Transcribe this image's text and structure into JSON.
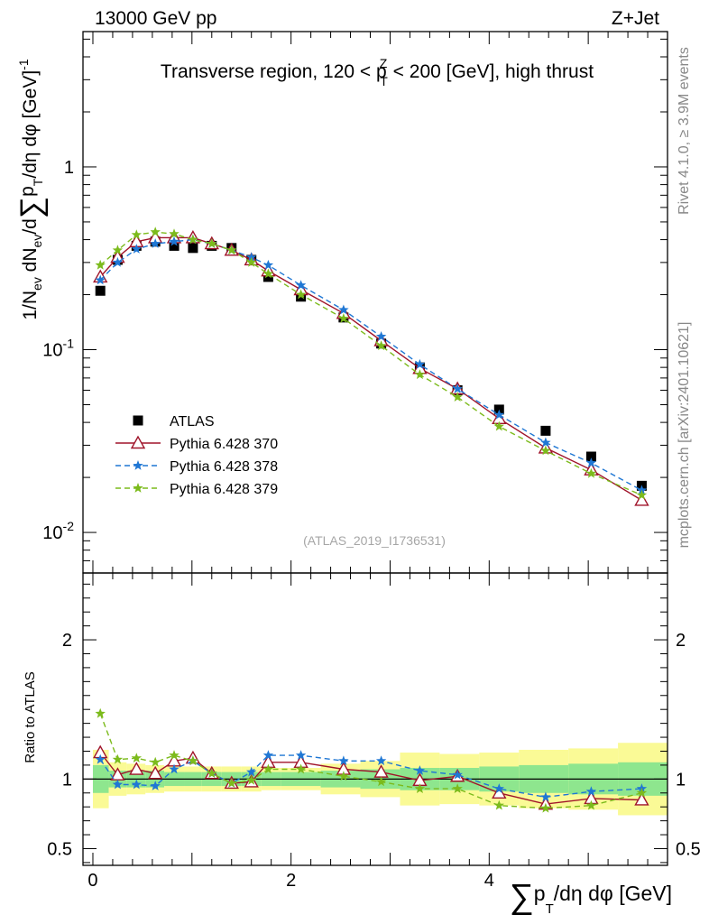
{
  "header": {
    "energy_label": "13000 GeV pp",
    "process_label": "Z+Jet"
  },
  "side_labels": {
    "rivet": "Rivet 4.1.0, ≥ 3.9M events",
    "mcplots": "mcplots.cern.ch [arXiv:2401.10621]"
  },
  "analysis_tag": "(ATLAS_2019_I1736531)",
  "chart_data": [
    {
      "panel": "main",
      "type": "scatter",
      "title": "Transverse region, 120 < p_T^Z < 200 [GeV], high thrust",
      "title_parts": {
        "pre": "Transverse region, 120 < p",
        "sub": "T",
        "sup": "Z",
        "post": " < 200 [GeV], high thrust"
      },
      "ylabel": "1/N_ev dN_ev/d∑p_T/dη dφ [GeV]^-1",
      "ylabel_parts": {
        "a": "1/N",
        "a_sub": "ev",
        "b": " dN",
        "b_sub": "ev",
        "c": "/d",
        "sum": "∑",
        "d": "p",
        "d_sub": "T",
        "e": "/dη dφ  [GeV]",
        "e_sup": "-1"
      },
      "yscale": "log",
      "ylim": [
        0.006,
        5.5
      ],
      "xlim": [
        -0.1,
        5.8
      ],
      "y_tick_labels": [
        {
          "v": 0.01,
          "base": "10",
          "exp": "-2"
        },
        {
          "v": 0.1,
          "base": "10",
          "exp": "-1"
        },
        {
          "v": 1,
          "base": "1",
          "exp": ""
        }
      ],
      "x": [
        0.075,
        0.25,
        0.44,
        0.63,
        0.82,
        1.01,
        1.2,
        1.4,
        1.6,
        1.77,
        2.1,
        2.53,
        2.91,
        3.3,
        3.68,
        4.1,
        4.57,
        5.03,
        5.54
      ],
      "series": [
        {
          "name": "ATLAS",
          "style": "square",
          "color": "#000000",
          "values": [
            0.21,
            0.31,
            0.37,
            0.39,
            0.37,
            0.36,
            0.37,
            0.36,
            0.31,
            0.25,
            0.195,
            0.15,
            0.108,
            0.08,
            0.06,
            0.047,
            0.036,
            0.026,
            0.018
          ]
        },
        {
          "name": "Pythia 6.428 370",
          "style": "triangle-solid",
          "color": "#a0142a",
          "values": [
            0.25,
            0.32,
            0.39,
            0.41,
            0.41,
            0.41,
            0.38,
            0.35,
            0.31,
            0.27,
            0.213,
            0.158,
            0.112,
            0.079,
            0.061,
            0.042,
            0.029,
            0.022,
            0.015
          ]
        },
        {
          "name": "Pythia 6.428 378",
          "style": "star-dashed",
          "color": "#1f77d4",
          "values": [
            0.24,
            0.3,
            0.355,
            0.38,
            0.39,
            0.4,
            0.38,
            0.35,
            0.32,
            0.29,
            0.225,
            0.165,
            0.118,
            0.083,
            0.061,
            0.044,
            0.031,
            0.024,
            0.017
          ]
        },
        {
          "name": "Pythia 6.428 379",
          "style": "star-dashed",
          "color": "#7cbb1c",
          "values": [
            0.29,
            0.35,
            0.425,
            0.44,
            0.43,
            0.4,
            0.38,
            0.35,
            0.3,
            0.26,
            0.2,
            0.148,
            0.105,
            0.073,
            0.055,
            0.038,
            0.028,
            0.021,
            0.016
          ]
        }
      ]
    },
    {
      "panel": "ratio",
      "type": "line",
      "ylabel": "Ratio to ATLAS",
      "xlabel": "∑p_T/dη dφ [GeV]",
      "xlabel_parts": {
        "sum": "∑",
        "a": "p",
        "a_sub": "T",
        "b": "/dη dφ [GeV]"
      },
      "ylim": [
        0.38,
        2.48
      ],
      "xlim": [
        -0.1,
        5.8
      ],
      "y_ticks": [
        0.5,
        1,
        2
      ],
      "x_ticks": [
        0,
        2,
        4
      ],
      "reference": 1,
      "bins": [
        [
          0,
          0.16
        ],
        [
          0.16,
          0.34
        ],
        [
          0.34,
          0.53
        ],
        [
          0.53,
          0.72
        ],
        [
          0.72,
          0.92
        ],
        [
          0.92,
          1.1
        ],
        [
          1.1,
          1.3
        ],
        [
          1.3,
          1.5
        ],
        [
          1.5,
          1.7
        ],
        [
          1.7,
          1.9
        ],
        [
          1.9,
          2.3
        ],
        [
          2.3,
          2.7
        ],
        [
          2.7,
          3.1
        ],
        [
          3.1,
          3.5
        ],
        [
          3.5,
          3.9
        ],
        [
          3.9,
          4.3
        ],
        [
          4.3,
          4.8
        ],
        [
          4.8,
          5.3
        ],
        [
          5.3,
          5.8
        ]
      ],
      "band_inner": [
        [
          0.9,
          1.1
        ],
        [
          0.94,
          1.06
        ],
        [
          0.94,
          1.06
        ],
        [
          0.94,
          1.06
        ],
        [
          0.95,
          1.05
        ],
        [
          0.95,
          1.05
        ],
        [
          0.95,
          1.05
        ],
        [
          0.95,
          1.05
        ],
        [
          0.95,
          1.05
        ],
        [
          0.95,
          1.05
        ],
        [
          0.95,
          1.05
        ],
        [
          0.94,
          1.06
        ],
        [
          0.93,
          1.07
        ],
        [
          0.92,
          1.08
        ],
        [
          0.92,
          1.08
        ],
        [
          0.91,
          1.09
        ],
        [
          0.9,
          1.1
        ],
        [
          0.89,
          1.11
        ],
        [
          0.88,
          1.12
        ]
      ],
      "band_outer": [
        [
          0.79,
          1.21
        ],
        [
          0.88,
          1.12
        ],
        [
          0.89,
          1.11
        ],
        [
          0.9,
          1.1
        ],
        [
          0.91,
          1.09
        ],
        [
          0.91,
          1.09
        ],
        [
          0.91,
          1.09
        ],
        [
          0.91,
          1.09
        ],
        [
          0.91,
          1.09
        ],
        [
          0.92,
          1.08
        ],
        [
          0.92,
          1.08
        ],
        [
          0.89,
          1.11
        ],
        [
          0.87,
          1.13
        ],
        [
          0.81,
          1.19
        ],
        [
          0.82,
          1.18
        ],
        [
          0.81,
          1.19
        ],
        [
          0.79,
          1.21
        ],
        [
          0.78,
          1.22
        ],
        [
          0.74,
          1.26
        ]
      ],
      "band_colors": {
        "inner": "#8ee68e",
        "outer": "#fafa96"
      },
      "x": [
        0.075,
        0.25,
        0.44,
        0.63,
        0.82,
        1.01,
        1.2,
        1.4,
        1.6,
        1.77,
        2.1,
        2.53,
        2.91,
        3.3,
        3.68,
        4.1,
        4.57,
        5.03,
        5.54
      ],
      "series": [
        {
          "name": "Pythia 6.428 370",
          "style": "triangle-solid",
          "color": "#a0142a",
          "values": [
            1.19,
            1.03,
            1.07,
            1.04,
            1.13,
            1.15,
            1.04,
            0.97,
            0.98,
            1.12,
            1.12,
            1.07,
            1.05,
            0.99,
            1.02,
            0.9,
            0.82,
            0.86,
            0.85
          ]
        },
        {
          "name": "Pythia 6.428 378",
          "style": "star-dashed",
          "color": "#1f77d4",
          "values": [
            1.14,
            0.96,
            0.96,
            0.95,
            1.07,
            1.13,
            1.04,
            0.97,
            1.05,
            1.17,
            1.17,
            1.13,
            1.13,
            1.06,
            1.03,
            0.93,
            0.87,
            0.91,
            0.93
          ]
        },
        {
          "name": "Pythia 6.428 379",
          "style": "star-dashed",
          "color": "#7cbb1c",
          "values": [
            1.47,
            1.14,
            1.15,
            1.12,
            1.17,
            1.13,
            1.04,
            0.97,
            0.99,
            1.07,
            1.07,
            1.02,
            0.98,
            0.93,
            0.93,
            0.81,
            0.79,
            0.81,
            0.9
          ]
        }
      ]
    }
  ]
}
